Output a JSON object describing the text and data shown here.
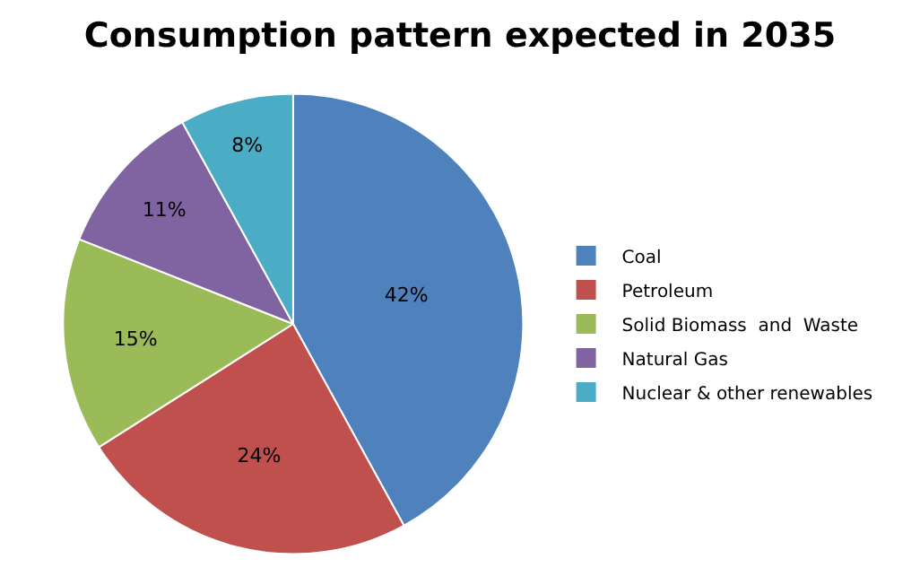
{
  "chart_data": {
    "type": "pie",
    "title": "Consumption pattern expected in 2035",
    "categories": [
      "Coal",
      "Petroleum",
      "Solid Biomass  and  Waste",
      "Natural Gas",
      "Nuclear & other renewables"
    ],
    "values": [
      42,
      24,
      15,
      11,
      8
    ],
    "value_labels": [
      "42%",
      "24%",
      "15%",
      "11%",
      "8%"
    ],
    "colors": [
      "#4f81bd",
      "#c0504d",
      "#9bbb59",
      "#8064a2",
      "#4bacc6"
    ],
    "legend": "right"
  }
}
